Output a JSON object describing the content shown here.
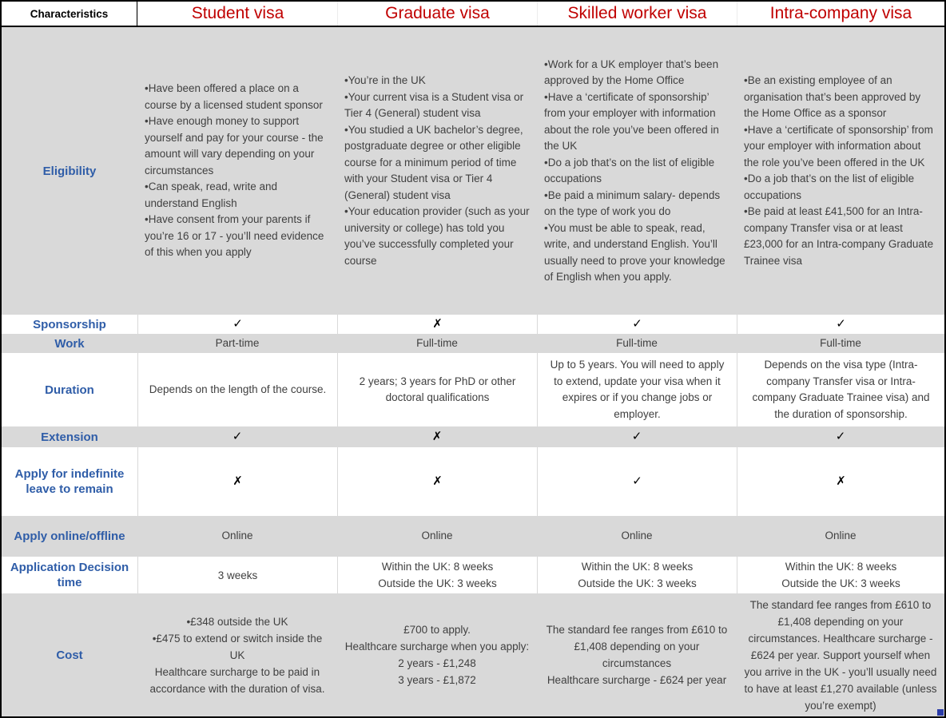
{
  "colors": {
    "header_red": "#C00000",
    "label_blue": "#2F5DA8",
    "band_gray": "#D9D9D9",
    "text_dark": "#404040",
    "border_black": "#000000",
    "handle_blue": "#2A3BA8"
  },
  "header": {
    "characteristics": "Characteristics",
    "columns": [
      "Student visa",
      "Graduate visa",
      "Skilled worker visa",
      "Intra-company visa"
    ]
  },
  "rows": [
    {
      "label": "Eligibility",
      "cells": [
        [
          "•Have been offered a place on a course by a licensed student sponsor",
          "•Have enough money to support yourself and pay for your course - the amount will vary depending on your circumstances",
          "•Can speak, read, write and understand English",
          "•Have consent from your parents if you’re 16 or 17 - you’ll need evidence of this when you apply"
        ],
        [
          "•You’re in the UK",
          "•Your current visa is a Student visa or Tier 4 (General) student visa",
          "•You studied a UK bachelor’s degree, postgraduate degree or other eligible course for a minimum period of time with your Student visa or Tier 4 (General) student visa",
          "•Your education provider (such as your university or college) has told you you’ve successfully completed your course"
        ],
        [
          "•Work for a UK employer that’s been approved by the Home Office",
          "•Have a ‘certificate of sponsorship’ from your employer with information about the role you’ve been offered in the UK",
          "•Do a job that’s on the list of eligible occupations",
          "•Be paid a minimum salary- depends on the type of work you do",
          "•You must be able to speak, read, write, and understand English. You’ll usually need to prove your knowledge of English when you apply."
        ],
        [
          "•Be an existing employee of an organisation that’s been approved by the Home Office as a sponsor",
          "•Have a ‘certificate of sponsorship’ from your employer with information about the role you’ve been offered in the UK",
          "•Do a job that’s on the list of eligible occupations",
          "•Be paid at least £41,500 for an Intra-company Transfer visa or at least £23,000 for an Intra-company Graduate Trainee visa"
        ]
      ]
    },
    {
      "label": "Sponsorship",
      "cells": [
        [
          "✓"
        ],
        [
          "✗"
        ],
        [
          "✓"
        ],
        [
          "✓"
        ]
      ]
    },
    {
      "label": "Work",
      "cells": [
        [
          "Part-time"
        ],
        [
          "Full-time"
        ],
        [
          "Full-time"
        ],
        [
          "Full-time"
        ]
      ]
    },
    {
      "label": "Duration",
      "cells": [
        [
          "Depends on the length of the course."
        ],
        [
          "2 years; 3 years for PhD or other doctoral qualifications"
        ],
        [
          "Up to 5 years. You will need to apply to extend, update your visa when it expires or if you change jobs or employer."
        ],
        [
          "Depends on the visa type (Intra-company Transfer visa or Intra-company Graduate Trainee visa) and the duration of sponsorship."
        ]
      ]
    },
    {
      "label": "Extension",
      "cells": [
        [
          "✓"
        ],
        [
          "✗"
        ],
        [
          "✓"
        ],
        [
          "✓"
        ]
      ]
    },
    {
      "label": "Apply for indefinite leave to remain",
      "cells": [
        [
          "✗"
        ],
        [
          "✗"
        ],
        [
          "✓"
        ],
        [
          "✗"
        ]
      ]
    },
    {
      "label": "Apply online/offline",
      "cells": [
        [
          "Online"
        ],
        [
          "Online"
        ],
        [
          "Online"
        ],
        [
          "Online"
        ]
      ]
    },
    {
      "label": "Application Decision time",
      "cells": [
        [
          "3 weeks"
        ],
        [
          "Within the UK: 8 weeks",
          "Outside the UK: 3 weeks"
        ],
        [
          "Within the UK: 8 weeks",
          "Outside the UK: 3 weeks"
        ],
        [
          "Within the UK: 8 weeks",
          "Outside the UK: 3 weeks"
        ]
      ]
    },
    {
      "label": "Cost",
      "cells": [
        [
          "•£348 outside the UK",
          "•£475 to extend or switch  inside the UK",
          "Healthcare surcharge to be paid in accordance with the duration of visa."
        ],
        [
          "£700 to apply.",
          "Healthcare surcharge when you apply:",
          "2 years - £1,248",
          "3 years - £1,872"
        ],
        [
          "The standard fee ranges from £610 to £1,408 depending on your circumstances",
          "Healthcare surcharge - £624 per year"
        ],
        [
          "The standard fee ranges from £610 to £1,408 depending on your circumstances. Healthcare surcharge - £624 per year. Support yourself when you arrive in the UK - you’ll usually need to have at least £1,270 available (unless you’re exempt)"
        ]
      ]
    }
  ]
}
